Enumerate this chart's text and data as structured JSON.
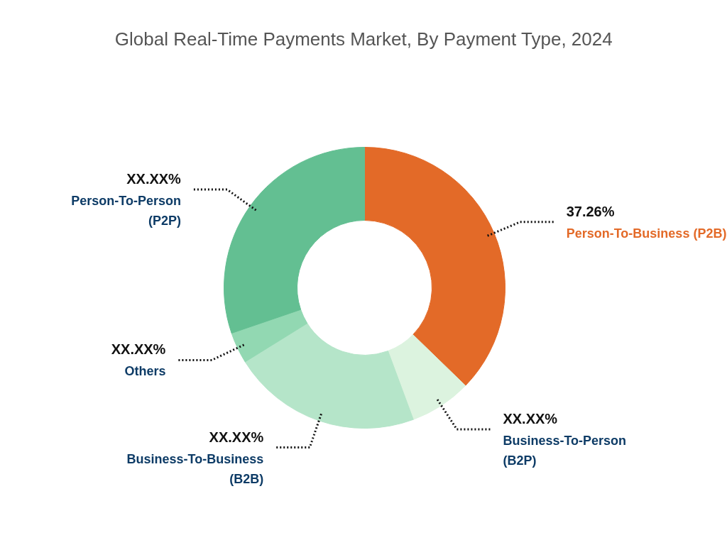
{
  "chart_data": {
    "type": "donut",
    "title": "Global Real-Time Payments Market, By Payment Type, 2024",
    "categories": [
      "Person-To-Business (P2B)",
      "Business-To-Person (B2P)",
      "Business-To-Business (B2B)",
      "Others",
      "Person-To-Person (P2P)"
    ],
    "values": [
      37.26,
      7.1,
      21.8,
      3.6,
      30.24
    ],
    "colors": [
      "#e36a28",
      "#dcf3df",
      "#b5e5c9",
      "#92d8b2",
      "#63bf92"
    ],
    "value_labels": [
      "37.26%",
      "XX.XX%",
      "XX.XX%",
      "XX.XX%",
      "XX.XX%"
    ]
  }
}
